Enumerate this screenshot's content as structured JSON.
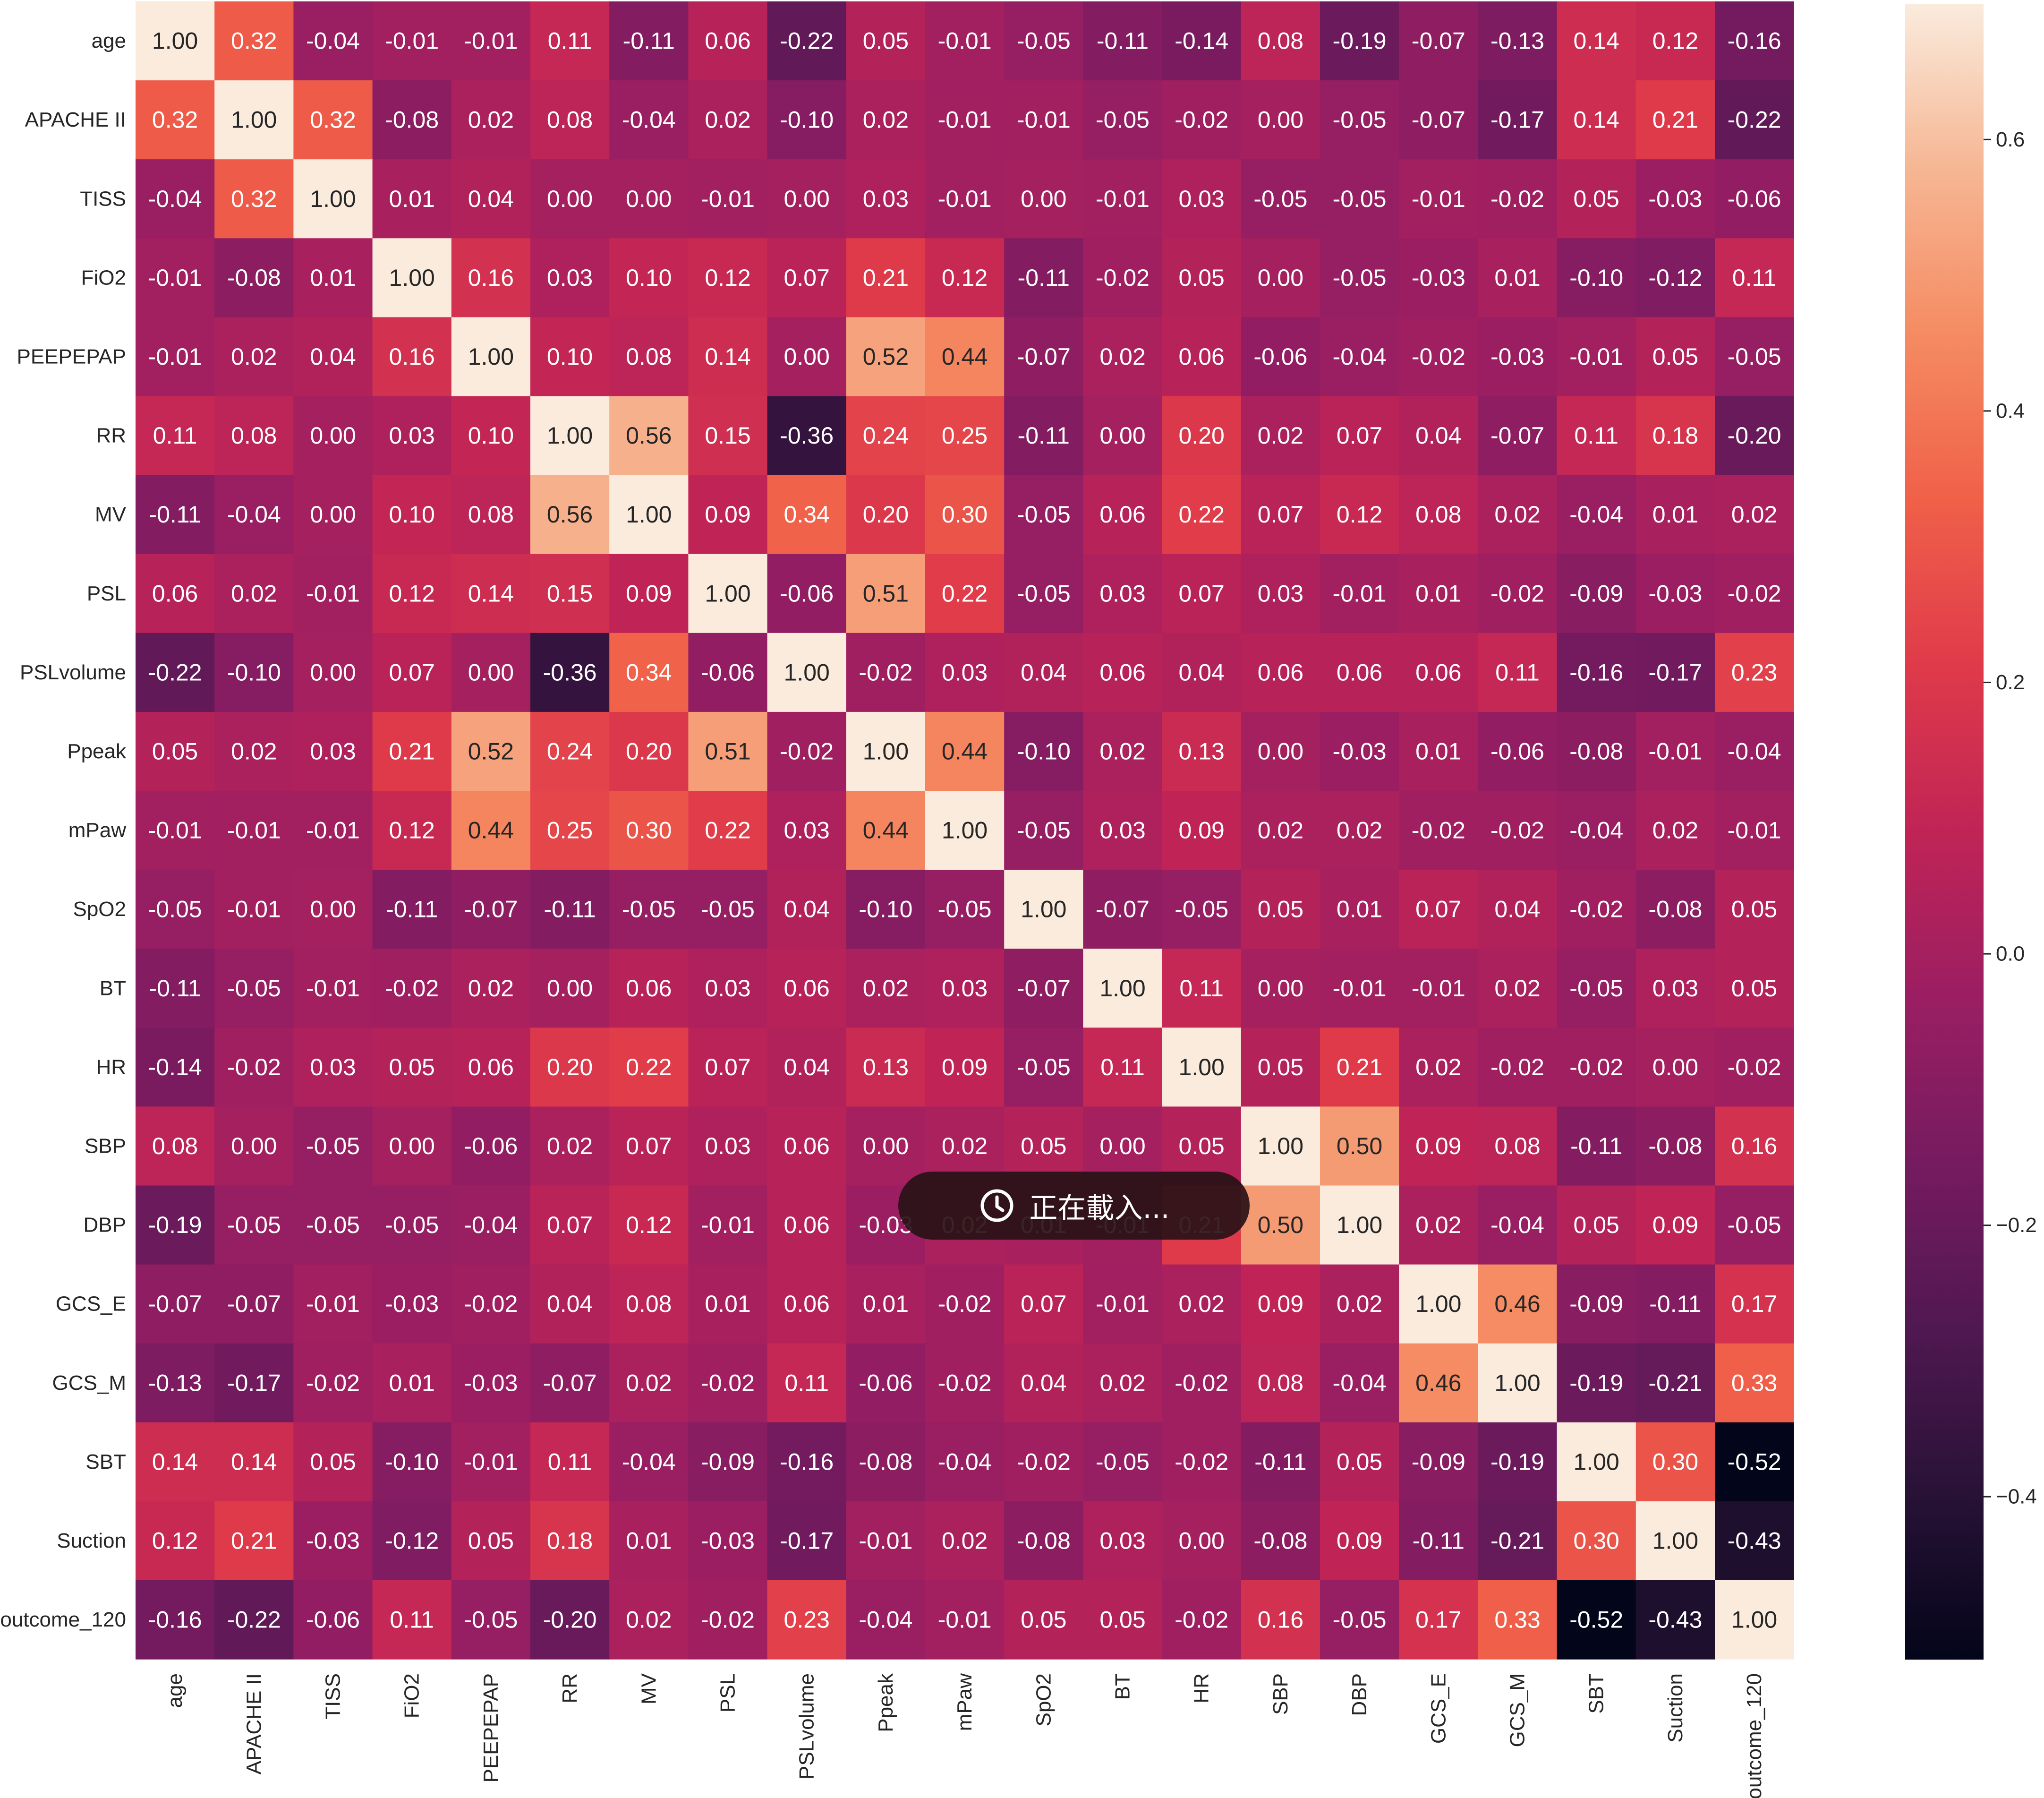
{
  "chart_data": {
    "type": "heatmap",
    "title": "",
    "xlabel": "",
    "ylabel": "",
    "labels": [
      "age",
      "APACHE II",
      "TISS",
      "FiO2",
      "PEEPEPAP",
      "RR",
      "MV",
      "PSL",
      "PSLvolume",
      "Ppeak",
      "mPaw",
      "SpO2",
      "BT",
      "HR",
      "SBP",
      "DBP",
      "GCS_E",
      "GCS_M",
      "SBT",
      "Suction",
      "outcome_120"
    ],
    "values": [
      [
        1.0,
        0.32,
        -0.04,
        -0.01,
        -0.01,
        0.11,
        -0.11,
        0.06,
        -0.22,
        0.05,
        -0.01,
        -0.05,
        -0.11,
        -0.14,
        0.08,
        -0.19,
        -0.07,
        -0.13,
        0.14,
        0.12,
        -0.16
      ],
      [
        0.32,
        1.0,
        0.32,
        -0.08,
        0.02,
        0.08,
        -0.04,
        0.02,
        -0.1,
        0.02,
        -0.01,
        -0.01,
        -0.05,
        -0.02,
        0.0,
        -0.05,
        -0.07,
        -0.17,
        0.14,
        0.21,
        -0.22
      ],
      [
        -0.04,
        0.32,
        1.0,
        0.01,
        0.04,
        0.0,
        0.0,
        -0.01,
        0.0,
        0.03,
        -0.01,
        -0.0,
        -0.01,
        0.03,
        -0.05,
        -0.05,
        -0.01,
        -0.02,
        0.05,
        -0.03,
        -0.06
      ],
      [
        -0.01,
        -0.08,
        0.01,
        1.0,
        0.16,
        0.03,
        0.1,
        0.12,
        0.07,
        0.21,
        0.12,
        -0.11,
        -0.02,
        0.05,
        -0.0,
        -0.05,
        -0.03,
        0.01,
        -0.1,
        -0.12,
        0.11
      ],
      [
        -0.01,
        0.02,
        0.04,
        0.16,
        1.0,
        0.1,
        0.08,
        0.14,
        0.0,
        0.52,
        0.44,
        -0.07,
        0.02,
        0.06,
        -0.06,
        -0.04,
        -0.02,
        -0.03,
        -0.01,
        0.05,
        -0.05
      ],
      [
        0.11,
        0.08,
        0.0,
        0.03,
        0.1,
        1.0,
        0.56,
        0.15,
        -0.36,
        0.24,
        0.25,
        -0.11,
        -0.0,
        0.2,
        0.02,
        0.07,
        0.04,
        -0.07,
        0.11,
        0.18,
        -0.2
      ],
      [
        -0.11,
        -0.04,
        0.0,
        0.1,
        0.08,
        0.56,
        1.0,
        0.09,
        0.34,
        0.2,
        0.3,
        -0.05,
        0.06,
        0.22,
        0.07,
        0.12,
        0.08,
        0.02,
        -0.04,
        0.01,
        0.02
      ],
      [
        0.06,
        0.02,
        -0.01,
        0.12,
        0.14,
        0.15,
        0.09,
        1.0,
        -0.06,
        0.51,
        0.22,
        -0.05,
        0.03,
        0.07,
        0.03,
        -0.01,
        0.01,
        -0.02,
        -0.09,
        -0.03,
        -0.02
      ],
      [
        -0.22,
        -0.1,
        0.0,
        0.07,
        0.0,
        -0.36,
        0.34,
        -0.06,
        1.0,
        -0.02,
        0.03,
        0.04,
        0.06,
        0.04,
        0.06,
        0.06,
        0.06,
        0.11,
        -0.16,
        -0.17,
        0.23
      ],
      [
        0.05,
        0.02,
        0.03,
        0.21,
        0.52,
        0.24,
        0.2,
        0.51,
        -0.02,
        1.0,
        0.44,
        -0.1,
        0.02,
        0.13,
        0.0,
        -0.03,
        0.01,
        -0.06,
        -0.08,
        -0.01,
        -0.04
      ],
      [
        -0.01,
        -0.01,
        -0.01,
        0.12,
        0.44,
        0.25,
        0.3,
        0.22,
        0.03,
        0.44,
        1.0,
        -0.05,
        0.03,
        0.09,
        0.02,
        0.02,
        -0.02,
        -0.02,
        -0.04,
        0.02,
        -0.01
      ],
      [
        -0.05,
        -0.01,
        -0.0,
        -0.11,
        -0.07,
        -0.11,
        -0.05,
        -0.05,
        0.04,
        -0.1,
        -0.05,
        1.0,
        -0.07,
        -0.05,
        0.05,
        0.01,
        0.07,
        0.04,
        -0.02,
        -0.08,
        0.05
      ],
      [
        -0.11,
        -0.05,
        -0.01,
        -0.02,
        0.02,
        -0.0,
        0.06,
        0.03,
        0.06,
        0.02,
        0.03,
        -0.07,
        1.0,
        0.11,
        0.0,
        -0.01,
        -0.01,
        0.02,
        -0.05,
        0.03,
        0.05
      ],
      [
        -0.14,
        -0.02,
        0.03,
        0.05,
        0.06,
        0.2,
        0.22,
        0.07,
        0.04,
        0.13,
        0.09,
        -0.05,
        0.11,
        1.0,
        0.05,
        0.21,
        0.02,
        -0.02,
        -0.02,
        0.0,
        -0.02
      ],
      [
        0.08,
        0.0,
        -0.05,
        -0.0,
        -0.06,
        0.02,
        0.07,
        0.03,
        0.06,
        0.0,
        0.02,
        0.05,
        0.0,
        0.05,
        1.0,
        0.5,
        0.09,
        0.08,
        -0.11,
        -0.08,
        0.16
      ],
      [
        -0.19,
        -0.05,
        -0.05,
        -0.05,
        -0.04,
        0.07,
        0.12,
        -0.01,
        0.06,
        -0.03,
        0.02,
        0.01,
        -0.01,
        0.21,
        0.5,
        1.0,
        0.02,
        -0.04,
        0.05,
        0.09,
        -0.05
      ],
      [
        -0.07,
        -0.07,
        -0.01,
        -0.03,
        -0.02,
        0.04,
        0.08,
        0.01,
        0.06,
        0.01,
        -0.02,
        0.07,
        -0.01,
        0.02,
        0.09,
        0.02,
        1.0,
        0.46,
        -0.09,
        -0.11,
        0.17
      ],
      [
        -0.13,
        -0.17,
        -0.02,
        0.01,
        -0.03,
        -0.07,
        0.02,
        -0.02,
        0.11,
        -0.06,
        -0.02,
        0.04,
        0.02,
        -0.02,
        0.08,
        -0.04,
        0.46,
        1.0,
        -0.19,
        -0.21,
        0.33
      ],
      [
        0.14,
        0.14,
        0.05,
        -0.1,
        -0.01,
        0.11,
        -0.04,
        -0.09,
        -0.16,
        -0.08,
        -0.04,
        -0.02,
        -0.05,
        -0.02,
        -0.11,
        0.05,
        -0.09,
        -0.19,
        1.0,
        0.3,
        -0.52
      ],
      [
        0.12,
        0.21,
        -0.03,
        -0.12,
        0.05,
        0.18,
        0.01,
        -0.03,
        -0.17,
        -0.01,
        0.02,
        -0.08,
        0.03,
        0.0,
        -0.08,
        0.09,
        -0.11,
        -0.21,
        0.3,
        1.0,
        -0.43
      ],
      [
        -0.16,
        -0.22,
        -0.06,
        0.11,
        -0.05,
        -0.2,
        0.02,
        -0.02,
        0.23,
        -0.04,
        -0.01,
        0.05,
        0.05,
        -0.02,
        0.16,
        -0.05,
        0.17,
        0.33,
        -0.52,
        -0.43,
        1.0
      ]
    ],
    "cell_value_format": "2 decimals",
    "colorscale": "rocket",
    "vmin": -0.52,
    "vmax": 0.7,
    "colorbar_ticks": [
      0.6,
      0.4,
      0.2,
      0.0,
      -0.2,
      -0.4
    ],
    "colorbar_tick_labels": [
      "0.6",
      "0.4",
      "0.2",
      "0.0",
      "−0.2",
      "−0.4"
    ]
  },
  "loading_overlay": {
    "text": "正在載入...",
    "icon": "clock-icon"
  }
}
